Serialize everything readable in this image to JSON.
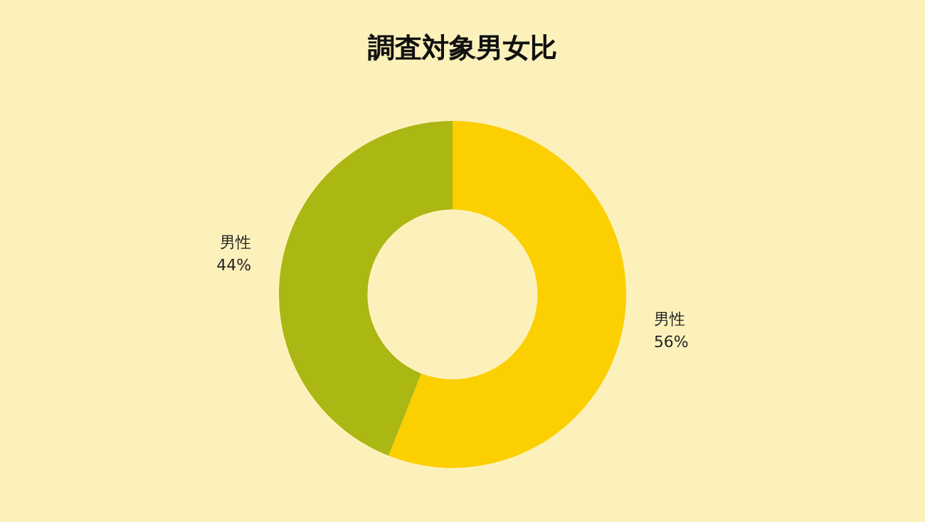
{
  "chart_data": {
    "type": "donut",
    "title": "調査対象男女比",
    "categories": [
      "男性",
      "男性"
    ],
    "values": [
      56,
      44
    ],
    "value_labels": [
      "56%",
      "44%"
    ],
    "colors": [
      "#fccf00",
      "#abb712"
    ]
  }
}
